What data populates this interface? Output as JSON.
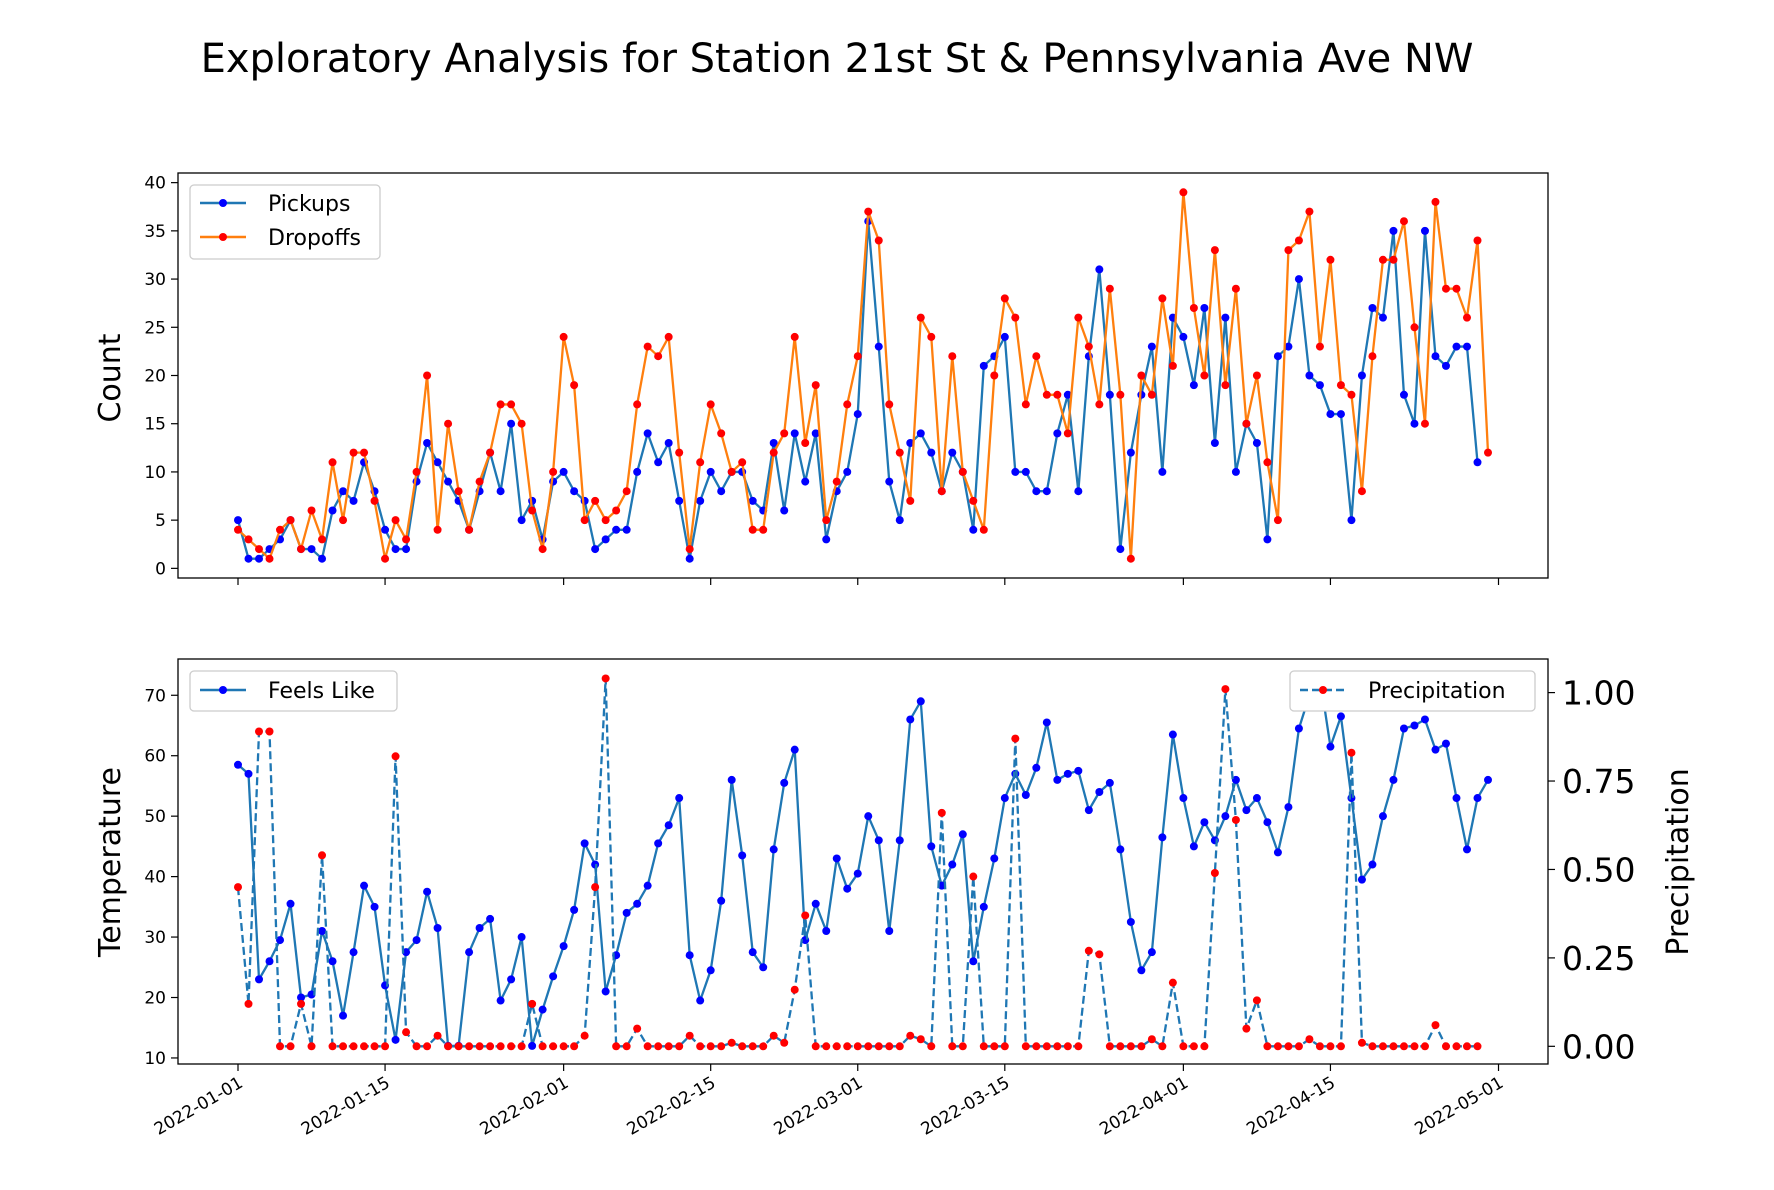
{
  "title": "Exploratory Analysis for Station 21st St & Pennsylvania Ave NW",
  "colors": {
    "blue": "#1f77b4",
    "orange": "#ff7f0e",
    "marker_blue": "#0000ff",
    "marker_red": "#ff0000"
  },
  "x_tick_labels": [
    "2022-01-01",
    "2022-01-15",
    "2022-02-01",
    "2022-02-15",
    "2022-03-01",
    "2022-03-15",
    "2022-04-01",
    "2022-04-15",
    "2022-05-01"
  ],
  "chart_data": [
    {
      "type": "line",
      "title": "",
      "xlabel": "",
      "ylabel": "Count",
      "ylim": [
        -1,
        41
      ],
      "yticks": [
        0,
        5,
        10,
        15,
        20,
        25,
        30,
        35,
        40
      ],
      "x_start": "2022-01-01",
      "x_end": "2022-04-30",
      "legend": "top-left",
      "grid": false,
      "series": [
        {
          "name": "Pickups",
          "values": [
            5,
            1,
            1,
            2,
            3,
            5,
            2,
            2,
            1,
            6,
            8,
            7,
            11,
            8,
            4,
            2,
            2,
            9,
            13,
            11,
            9,
            7,
            4,
            8,
            12,
            8,
            15,
            5,
            7,
            3,
            9,
            10,
            8,
            7,
            2,
            3,
            4,
            4,
            10,
            14,
            11,
            13,
            7,
            1,
            7,
            10,
            8,
            10,
            10,
            7,
            6,
            13,
            6,
            14,
            9,
            14,
            3,
            8,
            10,
            16,
            36,
            23,
            9,
            5,
            13,
            14,
            12,
            8,
            12,
            10,
            4,
            21,
            22,
            24,
            10,
            10,
            8,
            8,
            14,
            18,
            8,
            22,
            31,
            18,
            2,
            12,
            18,
            23,
            10,
            26,
            24,
            19,
            27,
            13,
            26,
            10,
            15,
            13,
            3,
            22,
            23,
            30,
            20,
            19,
            16,
            16,
            5,
            20,
            27,
            26,
            35,
            18,
            15,
            35,
            22,
            21,
            23,
            23,
            11
          ]
        },
        {
          "name": "Dropoffs",
          "values": [
            4,
            3,
            2,
            1,
            4,
            5,
            2,
            6,
            3,
            11,
            5,
            12,
            12,
            7,
            1,
            5,
            3,
            10,
            20,
            4,
            15,
            8,
            4,
            9,
            12,
            17,
            17,
            15,
            6,
            2,
            10,
            24,
            19,
            5,
            7,
            5,
            6,
            8,
            17,
            23,
            22,
            24,
            12,
            2,
            11,
            17,
            14,
            10,
            11,
            4,
            4,
            12,
            14,
            24,
            13,
            19,
            5,
            9,
            17,
            22,
            37,
            34,
            17,
            12,
            7,
            26,
            24,
            8,
            22,
            10,
            7,
            4,
            20,
            28,
            26,
            17,
            22,
            18,
            18,
            14,
            26,
            23,
            17,
            29,
            18,
            1,
            20,
            18,
            28,
            21,
            39,
            27,
            20,
            33,
            19,
            29,
            15,
            20,
            11,
            5,
            33,
            34,
            37,
            23,
            32,
            19,
            18,
            8,
            22,
            32,
            32,
            36,
            25,
            15,
            38,
            29,
            29,
            26,
            34,
            12
          ]
        }
      ]
    },
    {
      "type": "line",
      "title": "",
      "xlabel": "",
      "ylabel": "Temperature",
      "y2label": "Precipitation",
      "ylim": [
        9,
        76
      ],
      "yticks": [
        10,
        20,
        30,
        40,
        50,
        60,
        70
      ],
      "y2lim": [
        -0.05,
        1.095
      ],
      "y2ticks": [
        0.0,
        0.25,
        0.5,
        0.75,
        1.0
      ],
      "y2tick_labels": [
        "0.00",
        "0.25",
        "0.50",
        "0.75",
        "1.00"
      ],
      "x_start": "2022-01-01",
      "x_end": "2022-04-30",
      "legend": "top-left / top-right",
      "grid": false,
      "series": [
        {
          "name": "Feels Like",
          "axis": "left",
          "values": [
            58.5,
            57,
            23,
            26,
            29.5,
            35.5,
            20,
            20.5,
            31,
            26,
            17,
            27.5,
            38.5,
            35,
            22,
            13,
            27.5,
            29.5,
            37.5,
            31.5,
            12,
            12,
            27.5,
            31.5,
            33,
            19.5,
            23,
            30,
            12,
            18,
            23.5,
            28.5,
            34.5,
            45.5,
            42,
            21,
            27,
            34,
            35.5,
            38.5,
            45.5,
            48.5,
            53,
            27,
            19.5,
            24.5,
            36,
            56,
            43.5,
            27.5,
            25,
            44.5,
            55.5,
            61,
            29.5,
            35.5,
            31,
            43,
            38,
            40.5,
            50,
            46,
            31,
            46,
            66,
            69,
            45,
            38.5,
            42,
            47,
            26,
            35,
            43,
            53,
            57,
            53.5,
            58,
            65.5,
            56,
            57,
            57.5,
            51,
            54,
            55.5,
            44.5,
            32.5,
            24.5,
            27.5,
            46.5,
            63.5,
            53,
            45,
            49,
            46,
            50,
            56,
            51,
            53,
            49,
            44,
            51.5,
            64.5,
            70,
            73,
            61.5,
            66.5,
            53,
            39.5,
            42,
            50,
            56,
            64.5,
            65,
            66,
            61,
            62,
            53,
            44.5,
            53,
            56
          ]
        },
        {
          "name": "Precipitation",
          "axis": "right",
          "values": [
            0.45,
            0.12,
            0.89,
            0.89,
            0,
            0,
            0.12,
            0,
            0.54,
            0,
            0,
            0,
            0,
            0,
            0,
            0.82,
            0.04,
            0,
            0,
            0.03,
            0,
            0,
            0,
            0,
            0,
            0,
            0,
            0,
            0.12,
            0,
            0,
            0,
            0,
            0.03,
            0.45,
            1.04,
            0,
            0,
            0.05,
            0,
            0,
            0,
            0,
            0.03,
            0,
            0,
            0,
            0.01,
            0,
            0,
            0,
            0.03,
            0.01,
            0.16,
            0.37,
            0,
            0,
            0,
            0,
            0,
            0,
            0,
            0,
            0,
            0.03,
            0.02,
            0,
            0.66,
            0,
            0,
            0.48,
            0,
            0,
            0,
            0.87,
            0,
            0,
            0,
            0,
            0,
            0,
            0.27,
            0.26,
            0,
            0,
            0,
            0,
            0.02,
            0,
            0.18,
            0,
            0,
            0,
            0.49,
            1.01,
            0.64,
            0.05,
            0.13,
            0,
            0,
            0,
            0,
            0.02,
            0,
            0,
            0,
            0.83,
            0.01,
            0,
            0,
            0,
            0,
            0,
            0,
            0.06,
            0,
            0,
            0,
            0
          ]
        }
      ]
    }
  ]
}
